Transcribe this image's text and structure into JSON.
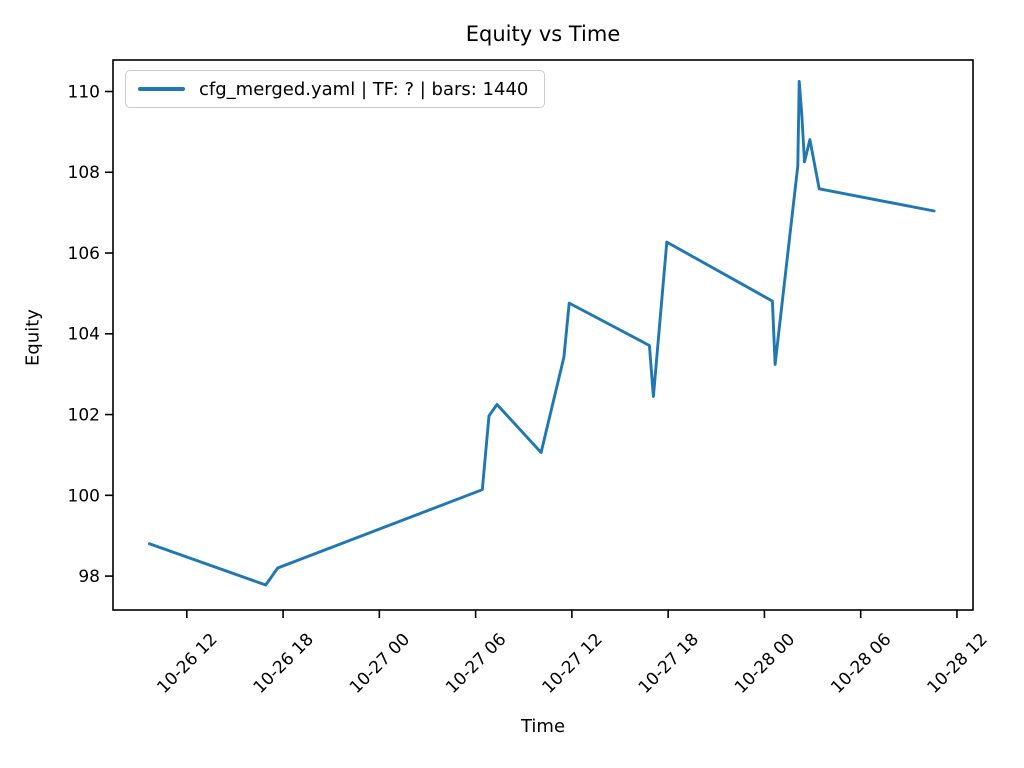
{
  "window": {
    "background": "#ffffff"
  },
  "chart_data": {
    "type": "line",
    "title": "Equity vs Time",
    "xlabel": "Time",
    "ylabel": "Equity",
    "grid": false,
    "legend_position": "upper left",
    "legend_entries": [
      "cfg_merged.yaml | TF: ? | bars: 1440"
    ],
    "axis_color": "#000000",
    "x_tick_labels": [
      "10-26 12",
      "10-26 18",
      "10-27 00",
      "10-27 06",
      "10-27 12",
      "10-27 18",
      "10-28 00",
      "10-28 06",
      "10-28 12"
    ],
    "x_tick_rotation_deg": 45,
    "y_tick_values": [
      98,
      100,
      102,
      104,
      106,
      108,
      110
    ],
    "xlim": [
      "10-26 07:24",
      "10-28 13:00"
    ],
    "ylim": [
      97.16,
      110.78
    ],
    "series": [
      {
        "name": "cfg_merged.yaml | TF: ? | bars: 1440",
        "color": "#1f77b4",
        "points": [
          [
            "10-26 09:40",
            98.8
          ],
          [
            "10-26 16:55",
            97.78
          ],
          [
            "10-26 17:40",
            98.2
          ],
          [
            "10-27 06:25",
            100.14
          ],
          [
            "10-27 06:50",
            101.97
          ],
          [
            "10-27 07:20",
            102.25
          ],
          [
            "10-27 10:05",
            101.06
          ],
          [
            "10-27 11:30",
            103.42
          ],
          [
            "10-27 11:50",
            104.76
          ],
          [
            "10-27 16:50",
            103.71
          ],
          [
            "10-27 17:05",
            102.45
          ],
          [
            "10-27 17:55",
            106.27
          ],
          [
            "10-28 00:30",
            104.81
          ],
          [
            "10-28 00:40",
            103.24
          ],
          [
            "10-28 02:05",
            108.16
          ],
          [
            "10-28 02:10",
            110.25
          ],
          [
            "10-28 02:20",
            109.38
          ],
          [
            "10-28 02:30",
            108.26
          ],
          [
            "10-28 02:50",
            108.81
          ],
          [
            "10-28 03:25",
            107.59
          ],
          [
            "10-28 10:35",
            107.04
          ]
        ]
      }
    ]
  }
}
